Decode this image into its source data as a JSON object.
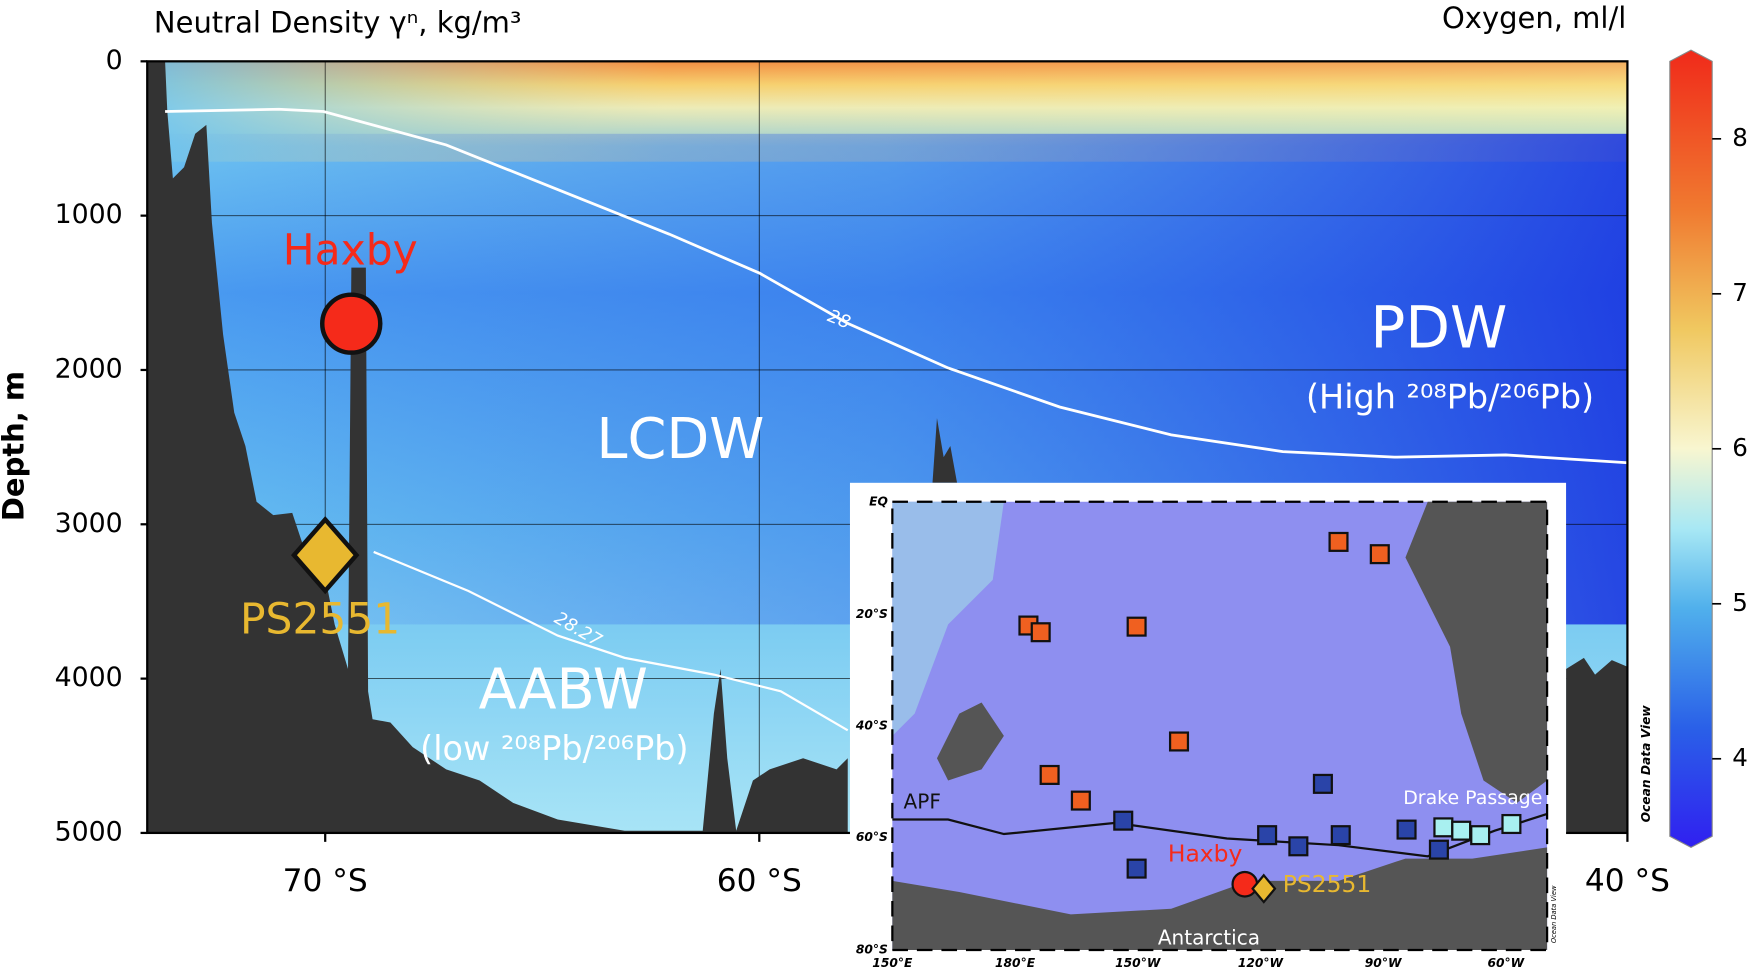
{
  "chart_data": {
    "type": "section",
    "title": "Neutral Density γⁿ, kg/m³",
    "ylabel": "Depth, m",
    "xlim": [
      -74.1,
      -40
    ],
    "ylim": [
      0,
      5000
    ],
    "xticks": [
      {
        "value": -70,
        "label": "70 °S"
      },
      {
        "value": -60,
        "label": "60 °S"
      },
      {
        "value": -40,
        "label": "40 °S"
      }
    ],
    "yticks": [
      0,
      1000,
      2000,
      3000,
      4000,
      5000
    ],
    "grid": true,
    "contours": [
      28,
      28.27
    ],
    "annotations": [
      "PDW",
      "(High ²⁰⁸Pb/²⁰⁶Pb)",
      "LCDW",
      "AABW",
      "(low ²⁰⁸Pb/²⁰⁶Pb)"
    ],
    "sites": [
      {
        "name": "Haxby",
        "x": -69.4,
        "y": 1700,
        "color": "#f52a1a"
      },
      {
        "name": "PS2551",
        "x": -70,
        "y": 3200,
        "color": "#e8b830"
      }
    ],
    "colorbar": {
      "title": "Oxygen, ml/l",
      "lim": [
        3.5,
        8.5
      ],
      "ticks": [
        4,
        5,
        6,
        7,
        8
      ]
    },
    "inset": {
      "lat_labels": [
        "EQ",
        "20°S",
        "40°S",
        "60°S",
        "80°S"
      ],
      "lon_labels": [
        "150°E",
        "180°E",
        "150°W",
        "120°W",
        "90°W",
        "60°W"
      ],
      "labels": [
        "APF",
        "Drake Passage",
        "Haxby",
        "PS2551",
        "Antarctica"
      ],
      "credit": "Ocean Data View"
    }
  }
}
